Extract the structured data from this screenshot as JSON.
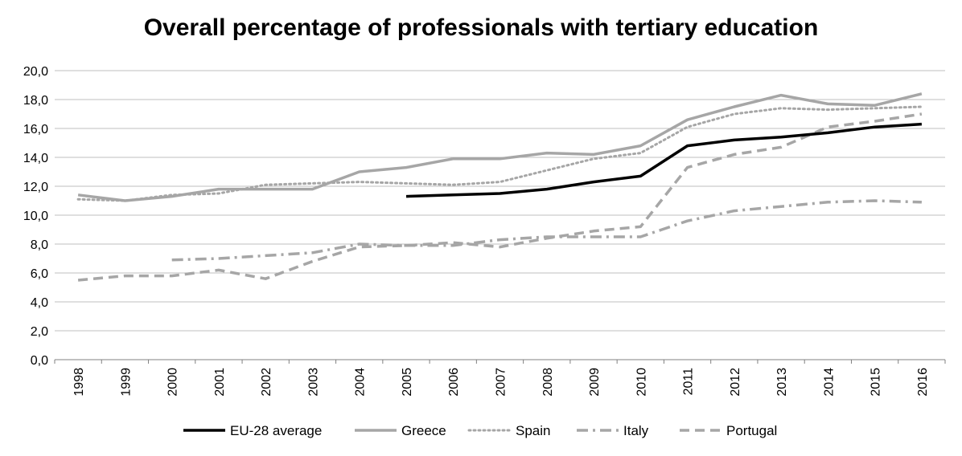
{
  "chart_data": {
    "type": "line",
    "title": "Overall percentage of professionals with tertiary education",
    "xlabel": "",
    "ylabel": "",
    "categories": [
      "1998",
      "1999",
      "2000",
      "2001",
      "2002",
      "2003",
      "2004",
      "2005",
      "2006",
      "2007",
      "2008",
      "2009",
      "2010",
      "2011",
      "2012",
      "2013",
      "2014",
      "2015",
      "2016"
    ],
    "ylim": [
      0,
      20
    ],
    "yticks": [
      "0,0",
      "2,0",
      "4,0",
      "6,0",
      "8,0",
      "10,0",
      "12,0",
      "14,0",
      "16,0",
      "18,0",
      "20,0"
    ],
    "grid": true,
    "legend_position": "bottom",
    "series": [
      {
        "name": "EU-28 average",
        "color": "#000000",
        "style": "solid",
        "values": [
          null,
          null,
          null,
          null,
          null,
          null,
          null,
          11.3,
          11.4,
          11.5,
          11.8,
          12.3,
          12.7,
          14.8,
          15.2,
          15.4,
          15.7,
          16.1,
          16.3
        ]
      },
      {
        "name": "Greece",
        "color": "#a6a6a6",
        "style": "solid",
        "values": [
          11.4,
          11.0,
          11.3,
          11.8,
          11.8,
          11.8,
          13.0,
          13.3,
          13.9,
          13.9,
          14.3,
          14.2,
          14.8,
          16.6,
          17.5,
          18.3,
          17.7,
          17.6,
          18.4
        ]
      },
      {
        "name": "Spain",
        "color": "#a6a6a6",
        "style": "dotted",
        "values": [
          11.1,
          11.0,
          11.4,
          11.5,
          12.1,
          12.2,
          12.3,
          12.2,
          12.1,
          12.3,
          13.1,
          13.9,
          14.3,
          16.1,
          17.0,
          17.4,
          17.3,
          17.4,
          17.5
        ]
      },
      {
        "name": "Italy",
        "color": "#a6a6a6",
        "style": "dashdot",
        "values": [
          null,
          null,
          6.9,
          7.0,
          7.2,
          7.4,
          8.0,
          7.9,
          7.9,
          8.3,
          8.5,
          8.5,
          8.5,
          9.6,
          10.3,
          10.6,
          10.9,
          11.0,
          10.9
        ]
      },
      {
        "name": "Portugal",
        "color": "#a6a6a6",
        "style": "dashed",
        "values": [
          5.5,
          5.8,
          5.8,
          6.2,
          5.6,
          6.8,
          7.8,
          7.9,
          8.1,
          7.8,
          8.4,
          8.9,
          9.2,
          13.3,
          14.2,
          14.7,
          16.1,
          16.5,
          17.0
        ]
      }
    ]
  }
}
